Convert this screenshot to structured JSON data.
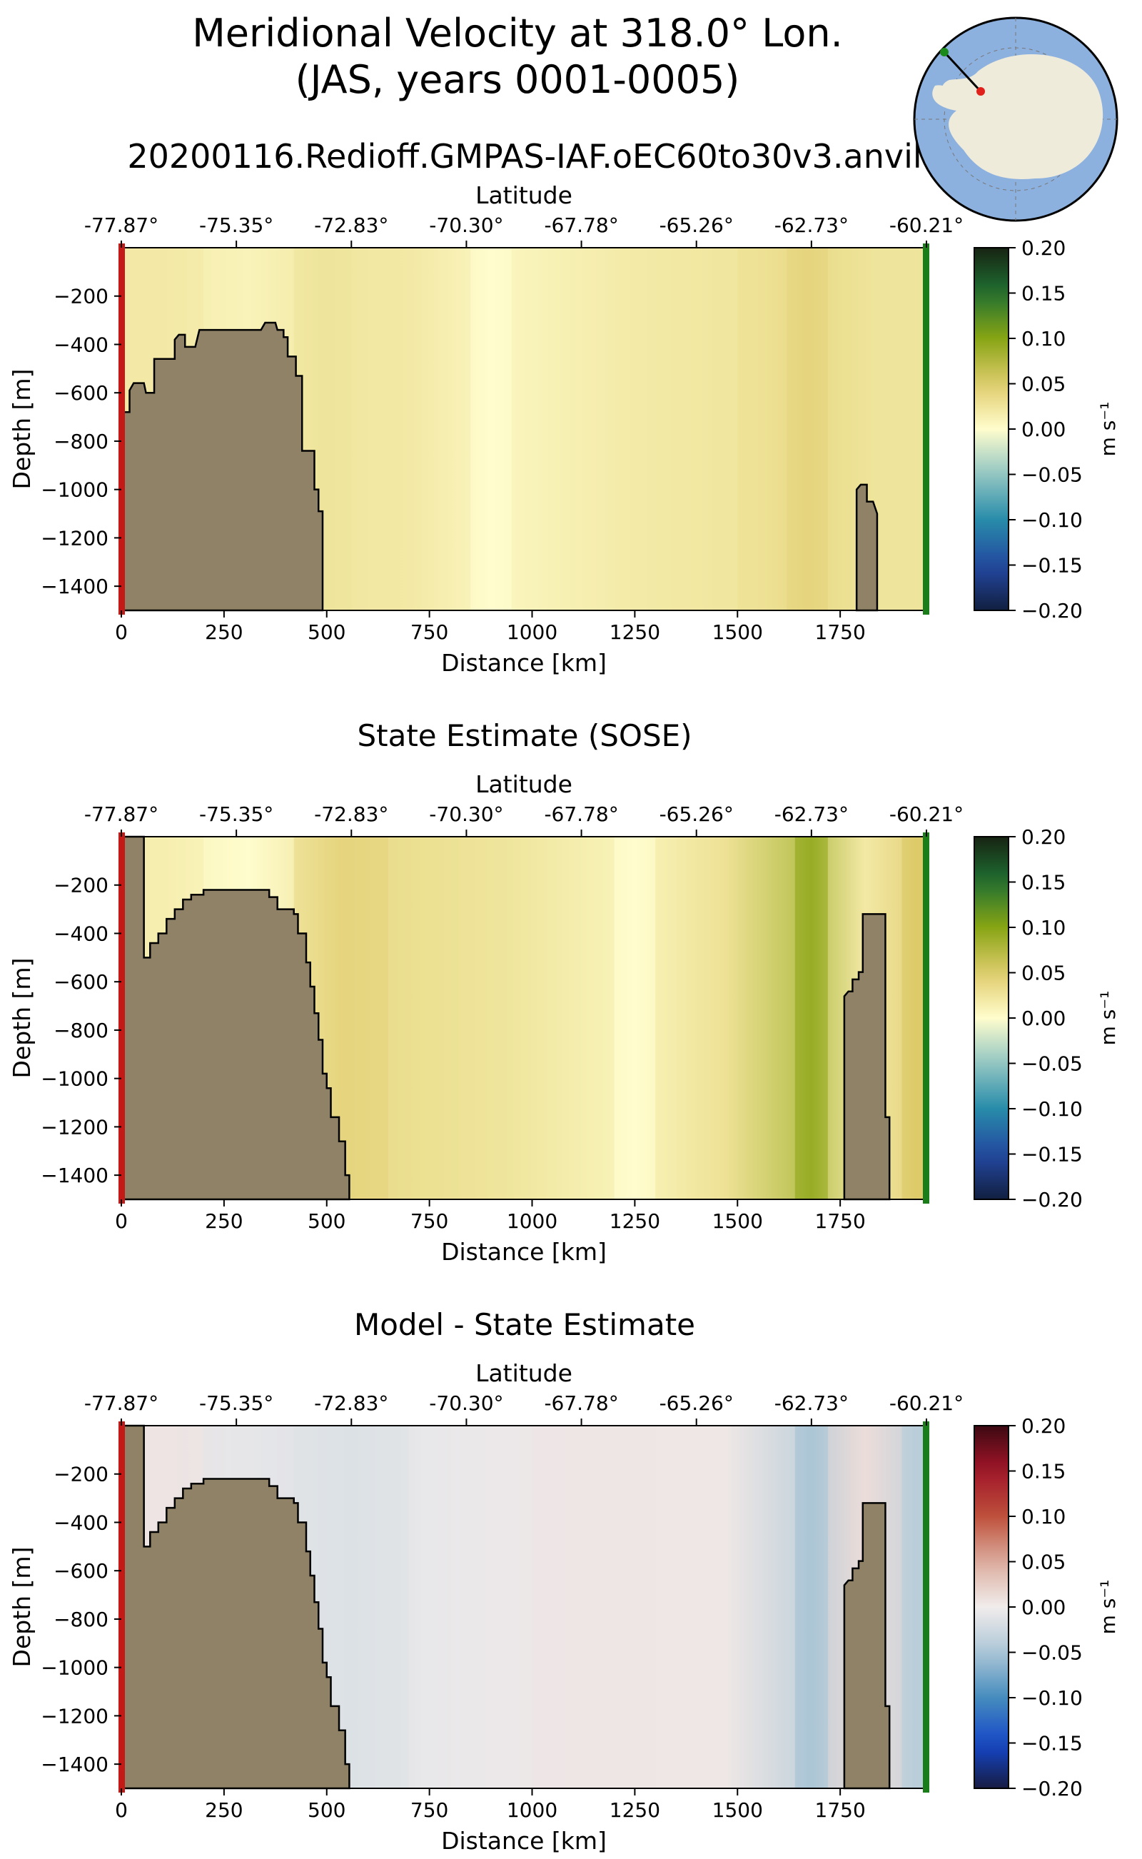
{
  "figure": {
    "title_line1": "Meridional Velocity at 318.0° Lon.",
    "title_line2": "(JAS, years 0001-0005)",
    "run_name": "20200116.Redioff.GMPAS-IAF.oEC60to30v3.anvil"
  },
  "inset_map": {
    "description_icon": "antarctica-polar-map",
    "transect_start_color": "#e0201b",
    "transect_end_color": "#1a8a1a"
  },
  "chart_data": [
    {
      "type": "heatmap",
      "title": "",
      "xlabel": "Distance [km]",
      "ylabel": "Depth [m]",
      "top_axis_label": "Latitude",
      "top_ticks": [
        "-77.87°",
        "-75.35°",
        "-72.83°",
        "-70.30°",
        "-67.78°",
        "-65.26°",
        "-62.73°",
        "-60.21°"
      ],
      "x_ticks": [
        "0",
        "250",
        "500",
        "750",
        "1000",
        "1250",
        "1500",
        "1750"
      ],
      "y_ticks": [
        "−200",
        "−400",
        "−600",
        "−800",
        "−1000",
        "−1200",
        "−1400"
      ],
      "xlim": [
        0,
        1960
      ],
      "ylim": [
        -1500,
        0
      ],
      "colormap": "delta-like diverging",
      "colorbar_label": "m s⁻¹",
      "colorbar_ticks": [
        "0.20",
        "0.15",
        "0.10",
        "0.05",
        "0.00",
        "−0.05",
        "−0.10",
        "−0.15",
        "−0.20"
      ],
      "vlim": [
        -0.2,
        0.2
      ],
      "bathymetry": [
        [
          0,
          -680
        ],
        [
          20,
          -680
        ],
        [
          20,
          -590
        ],
        [
          30,
          -560
        ],
        [
          55,
          -560
        ],
        [
          60,
          -600
        ],
        [
          80,
          -600
        ],
        [
          80,
          -460
        ],
        [
          130,
          -460
        ],
        [
          130,
          -380
        ],
        [
          140,
          -360
        ],
        [
          155,
          -360
        ],
        [
          155,
          -410
        ],
        [
          180,
          -410
        ],
        [
          190,
          -340
        ],
        [
          340,
          -340
        ],
        [
          350,
          -310
        ],
        [
          375,
          -310
        ],
        [
          380,
          -340
        ],
        [
          395,
          -340
        ],
        [
          395,
          -370
        ],
        [
          405,
          -370
        ],
        [
          405,
          -450
        ],
        [
          425,
          -450
        ],
        [
          425,
          -530
        ],
        [
          440,
          -530
        ],
        [
          440,
          -840
        ],
        [
          470,
          -840
        ],
        [
          470,
          -1000
        ],
        [
          480,
          -1000
        ],
        [
          480,
          -1090
        ],
        [
          490,
          -1090
        ],
        [
          490,
          -1500
        ]
      ],
      "ridge": [
        [
          1790,
          -1500
        ],
        [
          1790,
          -1000
        ],
        [
          1800,
          -980
        ],
        [
          1815,
          -980
        ],
        [
          1815,
          -1050
        ],
        [
          1830,
          -1050
        ],
        [
          1840,
          -1100
        ],
        [
          1840,
          -1500
        ]
      ],
      "velocity_bands": [
        {
          "x0": 0,
          "x1": 200,
          "v": 0.02
        },
        {
          "x0": 200,
          "x1": 420,
          "v": 0.01
        },
        {
          "x0": 420,
          "x1": 560,
          "v": 0.025
        },
        {
          "x0": 560,
          "x1": 850,
          "v": 0.02
        },
        {
          "x0": 850,
          "x1": 950,
          "v": 0.0
        },
        {
          "x0": 950,
          "x1": 1500,
          "v": 0.018
        },
        {
          "x0": 1500,
          "x1": 1620,
          "v": 0.028
        },
        {
          "x0": 1620,
          "x1": 1720,
          "v": 0.04
        },
        {
          "x0": 1720,
          "x1": 1960,
          "v": 0.025
        }
      ]
    },
    {
      "type": "heatmap",
      "title": "State Estimate (SOSE)",
      "xlabel": "Distance [km]",
      "ylabel": "Depth [m]",
      "top_axis_label": "Latitude",
      "top_ticks": [
        "-77.87°",
        "-75.35°",
        "-72.83°",
        "-70.30°",
        "-67.78°",
        "-65.26°",
        "-62.73°",
        "-60.21°"
      ],
      "x_ticks": [
        "0",
        "250",
        "500",
        "750",
        "1000",
        "1250",
        "1500",
        "1750"
      ],
      "y_ticks": [
        "−200",
        "−400",
        "−600",
        "−800",
        "−1000",
        "−1200",
        "−1400"
      ],
      "xlim": [
        0,
        1960
      ],
      "ylim": [
        -1500,
        0
      ],
      "colormap": "delta-like diverging",
      "colorbar_label": "m s⁻¹",
      "colorbar_ticks": [
        "0.20",
        "0.15",
        "0.10",
        "0.05",
        "0.00",
        "−0.05",
        "−0.10",
        "−0.15",
        "−0.20"
      ],
      "vlim": [
        -0.2,
        0.2
      ],
      "bathymetry": [
        [
          0,
          -1500
        ],
        [
          0,
          0
        ],
        [
          55,
          0
        ],
        [
          55,
          -500
        ],
        [
          70,
          -500
        ],
        [
          70,
          -440
        ],
        [
          90,
          -440
        ],
        [
          90,
          -400
        ],
        [
          110,
          -400
        ],
        [
          110,
          -340
        ],
        [
          130,
          -340
        ],
        [
          130,
          -300
        ],
        [
          150,
          -300
        ],
        [
          150,
          -260
        ],
        [
          170,
          -260
        ],
        [
          170,
          -240
        ],
        [
          200,
          -240
        ],
        [
          200,
          -220
        ],
        [
          360,
          -220
        ],
        [
          360,
          -250
        ],
        [
          380,
          -250
        ],
        [
          380,
          -300
        ],
        [
          420,
          -300
        ],
        [
          420,
          -320
        ],
        [
          430,
          -320
        ],
        [
          430,
          -400
        ],
        [
          450,
          -400
        ],
        [
          450,
          -520
        ],
        [
          460,
          -520
        ],
        [
          460,
          -620
        ],
        [
          470,
          -620
        ],
        [
          470,
          -730
        ],
        [
          480,
          -730
        ],
        [
          480,
          -840
        ],
        [
          490,
          -840
        ],
        [
          490,
          -980
        ],
        [
          500,
          -980
        ],
        [
          500,
          -1040
        ],
        [
          510,
          -1040
        ],
        [
          510,
          -1160
        ],
        [
          530,
          -1160
        ],
        [
          530,
          -1260
        ],
        [
          545,
          -1260
        ],
        [
          545,
          -1400
        ],
        [
          555,
          -1400
        ],
        [
          555,
          -1500
        ]
      ],
      "ridge": [
        [
          1760,
          -1500
        ],
        [
          1760,
          -660
        ],
        [
          1770,
          -640
        ],
        [
          1780,
          -640
        ],
        [
          1780,
          -590
        ],
        [
          1795,
          -590
        ],
        [
          1795,
          -560
        ],
        [
          1805,
          -560
        ],
        [
          1805,
          -320
        ],
        [
          1860,
          -320
        ],
        [
          1860,
          -1160
        ],
        [
          1870,
          -1160
        ],
        [
          1870,
          -1500
        ]
      ],
      "velocity_bands": [
        {
          "x0": 0,
          "x1": 200,
          "v": 0.015
        },
        {
          "x0": 200,
          "x1": 420,
          "v": 0.0
        },
        {
          "x0": 420,
          "x1": 650,
          "v": 0.04
        },
        {
          "x0": 650,
          "x1": 1200,
          "v": 0.025
        },
        {
          "x0": 1200,
          "x1": 1300,
          "v": 0.0
        },
        {
          "x0": 1300,
          "x1": 1640,
          "v": 0.028
        },
        {
          "x0": 1640,
          "x1": 1720,
          "v": 0.09
        },
        {
          "x0": 1720,
          "x1": 1900,
          "v": 0.02
        },
        {
          "x0": 1900,
          "x1": 1960,
          "v": 0.05
        }
      ]
    },
    {
      "type": "heatmap",
      "title": "Model - State Estimate",
      "xlabel": "Distance [km]",
      "ylabel": "Depth [m]",
      "top_axis_label": "Latitude",
      "top_ticks": [
        "-77.87°",
        "-75.35°",
        "-72.83°",
        "-70.30°",
        "-67.78°",
        "-65.26°",
        "-62.73°",
        "-60.21°"
      ],
      "x_ticks": [
        "0",
        "250",
        "500",
        "750",
        "1000",
        "1250",
        "1500",
        "1750"
      ],
      "y_ticks": [
        "−200",
        "−400",
        "−600",
        "−800",
        "−1000",
        "−1200",
        "−1400"
      ],
      "xlim": [
        0,
        1960
      ],
      "ylim": [
        -1500,
        0
      ],
      "colormap": "balance-like diverging",
      "colorbar_label": "m s⁻¹",
      "colorbar_ticks": [
        "0.20",
        "0.15",
        "0.10",
        "0.05",
        "0.00",
        "−0.05",
        "−0.10",
        "−0.15",
        "−0.20"
      ],
      "vlim": [
        -0.2,
        0.2
      ],
      "bathymetry": [
        [
          0,
          -1500
        ],
        [
          0,
          0
        ],
        [
          55,
          0
        ],
        [
          55,
          -500
        ],
        [
          70,
          -500
        ],
        [
          70,
          -440
        ],
        [
          90,
          -440
        ],
        [
          90,
          -400
        ],
        [
          110,
          -400
        ],
        [
          110,
          -340
        ],
        [
          130,
          -340
        ],
        [
          130,
          -300
        ],
        [
          150,
          -300
        ],
        [
          150,
          -260
        ],
        [
          170,
          -260
        ],
        [
          170,
          -240
        ],
        [
          200,
          -240
        ],
        [
          200,
          -220
        ],
        [
          360,
          -220
        ],
        [
          360,
          -250
        ],
        [
          380,
          -250
        ],
        [
          380,
          -300
        ],
        [
          420,
          -300
        ],
        [
          420,
          -320
        ],
        [
          430,
          -320
        ],
        [
          430,
          -400
        ],
        [
          450,
          -400
        ],
        [
          450,
          -520
        ],
        [
          460,
          -520
        ],
        [
          460,
          -620
        ],
        [
          470,
          -620
        ],
        [
          470,
          -730
        ],
        [
          480,
          -730
        ],
        [
          480,
          -840
        ],
        [
          490,
          -840
        ],
        [
          490,
          -980
        ],
        [
          500,
          -980
        ],
        [
          500,
          -1040
        ],
        [
          510,
          -1040
        ],
        [
          510,
          -1160
        ],
        [
          530,
          -1160
        ],
        [
          530,
          -1260
        ],
        [
          545,
          -1260
        ],
        [
          545,
          -1400
        ],
        [
          555,
          -1400
        ],
        [
          555,
          -1500
        ]
      ],
      "ridge": [
        [
          1760,
          -1500
        ],
        [
          1760,
          -660
        ],
        [
          1770,
          -640
        ],
        [
          1780,
          -640
        ],
        [
          1780,
          -590
        ],
        [
          1795,
          -590
        ],
        [
          1795,
          -560
        ],
        [
          1805,
          -560
        ],
        [
          1805,
          -320
        ],
        [
          1860,
          -320
        ],
        [
          1860,
          -1160
        ],
        [
          1870,
          -1160
        ],
        [
          1870,
          -1500
        ]
      ],
      "velocity_bands": [
        {
          "x0": 0,
          "x1": 200,
          "v": 0.006
        },
        {
          "x0": 200,
          "x1": 420,
          "v": -0.008
        },
        {
          "x0": 420,
          "x1": 700,
          "v": -0.015
        },
        {
          "x0": 700,
          "x1": 1000,
          "v": -0.004
        },
        {
          "x0": 1000,
          "x1": 1300,
          "v": 0.005
        },
        {
          "x0": 1300,
          "x1": 1640,
          "v": 0.004
        },
        {
          "x0": 1640,
          "x1": 1720,
          "v": -0.05
        },
        {
          "x0": 1720,
          "x1": 1900,
          "v": 0.012
        },
        {
          "x0": 1900,
          "x1": 1960,
          "v": -0.04
        }
      ]
    }
  ]
}
